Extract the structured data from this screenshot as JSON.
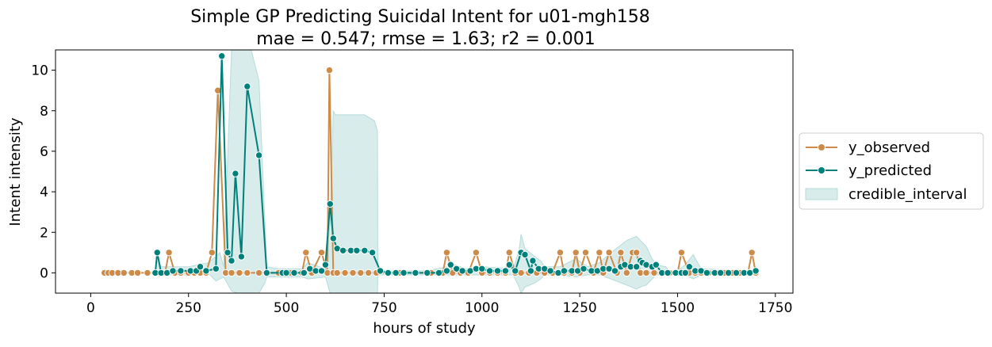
{
  "chart_data": {
    "type": "line",
    "title": "Simple GP Predicting Suicidal Intent for u01-mgh158",
    "subtitle": "mae = 0.547; rmse = 1.63; r2 = 0.001",
    "xlabel": "hours of study",
    "ylabel": "Intent intensity",
    "xlim": [
      -90,
      1795
    ],
    "ylim": [
      -1.0,
      11.0
    ],
    "xticks": [
      0,
      250,
      500,
      750,
      1000,
      1250,
      1500,
      1750
    ],
    "yticks": [
      0,
      2,
      4,
      6,
      8,
      10
    ],
    "grid": false,
    "legend_position": "right-outside",
    "colors": {
      "observed": "#cd8b4a",
      "predicted": "#00807a",
      "interval_fill": "#b7dcda"
    },
    "series": [
      {
        "name": "y_observed",
        "x": [
          35,
          45,
          55,
          70,
          85,
          105,
          120,
          145,
          165,
          175,
          190,
          200,
          215,
          230,
          250,
          265,
          280,
          295,
          310,
          325,
          345,
          360,
          380,
          400,
          430,
          450,
          480,
          510,
          540,
          550,
          565,
          590,
          605,
          610,
          620,
          630,
          650,
          670,
          690,
          710,
          730,
          760,
          790,
          830,
          870,
          900,
          910,
          925,
          945,
          965,
          985,
          1000,
          1020,
          1040,
          1060,
          1070,
          1085,
          1100,
          1120,
          1140,
          1160,
          1180,
          1200,
          1210,
          1230,
          1240,
          1250,
          1265,
          1285,
          1300,
          1310,
          1325,
          1345,
          1355,
          1370,
          1385,
          1395,
          1405,
          1420,
          1440,
          1460,
          1480,
          1500,
          1510,
          1530,
          1545,
          1560,
          1580,
          1600,
          1620,
          1640,
          1660,
          1680,
          1690,
          1700
        ],
        "values": [
          0,
          0,
          0,
          0,
          0,
          0,
          0,
          0,
          0,
          0,
          0,
          1,
          0,
          0,
          0,
          0,
          0,
          0,
          1,
          9,
          0,
          0,
          0,
          0,
          0,
          0,
          0,
          0,
          0,
          1,
          0,
          1,
          0,
          10,
          0,
          0,
          0,
          0,
          0,
          0,
          0,
          0,
          0,
          0,
          0,
          0,
          1,
          0,
          0,
          0,
          1,
          0,
          0,
          0,
          0,
          1,
          0,
          0,
          0,
          0,
          0,
          0,
          1,
          0,
          0,
          1,
          0,
          1,
          0,
          1,
          0,
          1,
          0,
          1,
          0,
          1,
          1,
          0,
          0,
          0,
          0,
          0,
          0,
          1,
          0,
          0,
          0,
          0,
          0,
          0,
          0,
          0,
          0,
          1,
          0
        ]
      },
      {
        "name": "y_predicted",
        "x": [
          165,
          170,
          180,
          195,
          210,
          230,
          255,
          270,
          280,
          295,
          320,
          335,
          350,
          360,
          370,
          385,
          400,
          430,
          450,
          490,
          500,
          520,
          545,
          560,
          575,
          590,
          600,
          612,
          620,
          630,
          645,
          665,
          680,
          700,
          720,
          740,
          760,
          780,
          800,
          830,
          860,
          890,
          910,
          920,
          935,
          950,
          970,
          985,
          1000,
          1020,
          1040,
          1060,
          1070,
          1085,
          1100,
          1110,
          1125,
          1130,
          1145,
          1160,
          1175,
          1195,
          1210,
          1230,
          1245,
          1260,
          1280,
          1295,
          1310,
          1325,
          1340,
          1355,
          1365,
          1380,
          1395,
          1405,
          1410,
          1420,
          1435,
          1445,
          1460,
          1475,
          1495,
          1510,
          1520,
          1530,
          1545,
          1560,
          1575,
          1595,
          1610,
          1630,
          1650,
          1670,
          1685,
          1700
        ],
        "values": [
          0,
          1,
          0,
          0,
          0.1,
          0.1,
          0.1,
          0.1,
          0.3,
          0.1,
          0.2,
          10.7,
          1.0,
          0.6,
          4.9,
          0.8,
          9.2,
          5.8,
          0,
          0,
          0,
          0,
          0,
          0.2,
          0.1,
          0.1,
          0.4,
          3.4,
          1.7,
          1.2,
          1.1,
          1.1,
          1.1,
          1.1,
          1.0,
          0.1,
          0,
          0,
          0,
          0,
          0,
          0,
          0.1,
          0.4,
          0.2,
          0.1,
          0.1,
          0.2,
          0.2,
          0.1,
          0.1,
          0.1,
          0.4,
          0.1,
          1.0,
          0.9,
          0.1,
          0.6,
          0.2,
          0.2,
          0.1,
          0,
          0.1,
          0.1,
          0.1,
          0.2,
          0.1,
          0.1,
          0.2,
          0.2,
          0.1,
          0.3,
          0.4,
          0.3,
          0.3,
          0.6,
          0.5,
          0.4,
          0.3,
          0.4,
          0,
          0,
          0,
          0,
          0,
          0.3,
          0.1,
          0.1,
          0,
          0,
          0,
          0,
          0,
          0,
          0,
          0.1
        ]
      }
    ],
    "credible_interval": {
      "name": "credible_interval",
      "x": [
        165,
        170,
        175,
        180,
        190,
        250,
        300,
        320,
        330,
        340,
        360,
        375,
        390,
        400,
        410,
        430,
        445,
        450,
        480,
        540,
        555,
        600,
        612,
        620,
        625,
        640,
        700,
        725,
        733,
        734,
        745,
        860,
        910,
        930,
        945,
        960,
        1000,
        1080,
        1095,
        1100,
        1110,
        1135,
        1150,
        1160,
        1200,
        1240,
        1270,
        1300,
        1330,
        1370,
        1395,
        1405,
        1420,
        1435,
        1445,
        1470,
        1480,
        1500,
        1520,
        1540,
        1560,
        1700
      ],
      "upper": [
        0.1,
        1.2,
        0.5,
        0.3,
        0.3,
        0.3,
        0.5,
        0.8,
        1.0,
        0.3,
        11.0,
        11.0,
        11.0,
        11.0,
        11.0,
        9.5,
        2.5,
        0.3,
        0.2,
        0.2,
        0.5,
        0.2,
        2.5,
        8.0,
        7.8,
        7.8,
        7.8,
        7.5,
        7.0,
        0.2,
        0.1,
        0.1,
        0.3,
        0.4,
        0.3,
        0.2,
        0.3,
        0.2,
        1.1,
        1.9,
        1.2,
        0.8,
        0.6,
        0.3,
        0.3,
        0.7,
        0.3,
        0.5,
        1.0,
        1.6,
        1.8,
        1.6,
        1.3,
        0.7,
        0.4,
        0.3,
        0.0,
        0.1,
        0.4,
        0.9,
        0.2,
        0.1
      ],
      "lower": [
        -0.1,
        0.0,
        -0.2,
        -0.1,
        -0.1,
        -0.1,
        0.0,
        -0.4,
        -0.3,
        -0.2,
        -0.9,
        -1.0,
        -1.0,
        -1.0,
        -1.0,
        -1.0,
        -0.5,
        -0.2,
        -0.2,
        -0.2,
        -0.3,
        -0.2,
        -1.0,
        -1.0,
        -1.0,
        -1.0,
        -1.0,
        -1.0,
        -1.0,
        -0.1,
        -0.1,
        -0.1,
        -0.1,
        -0.1,
        -0.1,
        -0.1,
        -0.1,
        -0.1,
        -0.7,
        -1.0,
        -0.7,
        -0.5,
        -0.3,
        -0.1,
        -0.1,
        -0.2,
        -0.1,
        -0.1,
        -0.3,
        -0.6,
        -0.8,
        -0.7,
        -0.6,
        -0.3,
        -0.1,
        -0.1,
        -0.1,
        -0.1,
        -0.1,
        -0.3,
        -0.1,
        -0.1
      ]
    }
  }
}
